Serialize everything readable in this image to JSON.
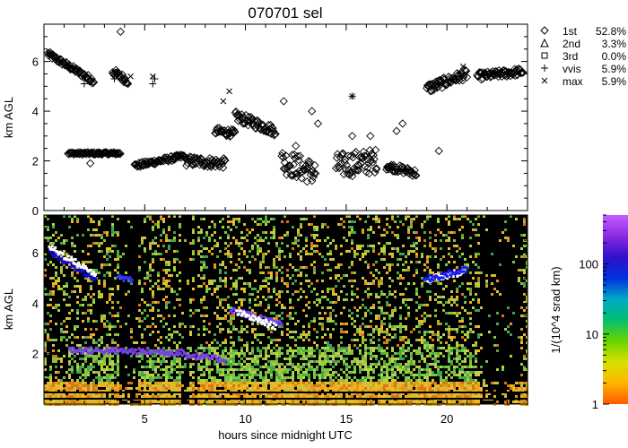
{
  "chart_data": [
    {
      "type": "scatter",
      "title": "070701 sel",
      "ylabel": "km AGL",
      "xlim": [
        0,
        24
      ],
      "ylim": [
        0,
        7.5
      ],
      "y_ticks": [
        "0",
        "2",
        "4",
        "6"
      ],
      "x_tick_values": [
        5,
        10,
        15,
        20
      ],
      "legend_position": "right",
      "legend": [
        {
          "symbol": "diamond",
          "glyph": "◇",
          "label": "1st",
          "percent": "52.8%"
        },
        {
          "symbol": "triangle",
          "glyph": "△",
          "label": "2nd",
          "percent": "3.3%"
        },
        {
          "symbol": "square",
          "glyph": "□",
          "label": "3rd",
          "percent": "0.0%"
        },
        {
          "symbol": "plus",
          "glyph": "+",
          "label": "vvis",
          "percent": "5.9%"
        },
        {
          "symbol": "x",
          "glyph": "×",
          "label": "max",
          "percent": "5.9%"
        }
      ],
      "series": [
        {
          "symbol": "diamond",
          "tracks": [
            {
              "x0": 0.2,
              "x1": 2.5,
              "y0": 6.3,
              "y1": 5.2,
              "noise": 0.12
            },
            {
              "x0": 1.2,
              "x1": 3.8,
              "y0": 2.3,
              "y1": 2.3,
              "noise": 0.05
            },
            {
              "x0": 3.4,
              "x1": 4.2,
              "y0": 5.6,
              "y1": 5.2,
              "noise": 0.15
            },
            {
              "x0": 4.5,
              "x1": 7.0,
              "y0": 1.8,
              "y1": 2.2,
              "noise": 0.1
            },
            {
              "x0": 7.0,
              "x1": 9.0,
              "y0": 2.0,
              "y1": 1.9,
              "noise": 0.2
            },
            {
              "x0": 8.5,
              "x1": 9.5,
              "y0": 3.2,
              "y1": 3.1,
              "noise": 0.15
            },
            {
              "x0": 9.5,
              "x1": 11.5,
              "y0": 3.8,
              "y1": 3.2,
              "noise": 0.2
            },
            {
              "x0": 11.8,
              "x1": 13.5,
              "y0": 2.0,
              "y1": 1.5,
              "noise": 0.5
            },
            {
              "x0": 14.5,
              "x1": 16.5,
              "y0": 1.8,
              "y1": 2.0,
              "noise": 0.5
            },
            {
              "x0": 17.0,
              "x1": 18.5,
              "y0": 1.8,
              "y1": 1.5,
              "noise": 0.15
            },
            {
              "x0": 19.0,
              "x1": 21.0,
              "y0": 4.9,
              "y1": 5.5,
              "noise": 0.2
            },
            {
              "x0": 21.5,
              "x1": 23.8,
              "y0": 5.4,
              "y1": 5.6,
              "noise": 0.15
            }
          ],
          "points": [
            {
              "x": 2.3,
              "y": 1.9
            },
            {
              "x": 3.8,
              "y": 7.2
            },
            {
              "x": 11.9,
              "y": 4.4
            },
            {
              "x": 12.5,
              "y": 2.6
            },
            {
              "x": 13.3,
              "y": 4.0
            },
            {
              "x": 13.6,
              "y": 3.5
            },
            {
              "x": 15.3,
              "y": 3.0
            },
            {
              "x": 16.2,
              "y": 3.0
            },
            {
              "x": 17.5,
              "y": 3.2
            },
            {
              "x": 17.8,
              "y": 3.5
            },
            {
              "x": 19.6,
              "y": 2.4
            },
            {
              "x": 16.5,
              "y": 1.7
            }
          ]
        },
        {
          "symbol": "plus",
          "points": [
            {
              "x": 3.5,
              "y": 5.3
            },
            {
              "x": 4.0,
              "y": 5.2
            },
            {
              "x": 5.4,
              "y": 5.1
            },
            {
              "x": 5.5,
              "y": 5.3
            },
            {
              "x": 2.0,
              "y": 5.1
            },
            {
              "x": 15.3,
              "y": 4.6
            }
          ]
        },
        {
          "symbol": "x",
          "points": [
            {
              "x": 3.6,
              "y": 5.5
            },
            {
              "x": 4.3,
              "y": 5.4
            },
            {
              "x": 5.4,
              "y": 5.4
            },
            {
              "x": 8.9,
              "y": 4.4
            },
            {
              "x": 9.2,
              "y": 4.8
            },
            {
              "x": 15.3,
              "y": 4.6
            },
            {
              "x": 20.8,
              "y": 5.8
            }
          ]
        }
      ]
    },
    {
      "type": "heatmap",
      "ylabel": "km AGL",
      "xlabel": "hours since midnight UTC",
      "xlim": [
        0,
        24
      ],
      "ylim": [
        0,
        7.5
      ],
      "x_ticks": [
        "5",
        "10",
        "15",
        "20"
      ],
      "y_ticks": [
        "2",
        "4",
        "6"
      ],
      "y_tick_values": [
        2,
        4,
        6
      ],
      "dark_columns_hours": [
        [
          3.7,
          4.6
        ],
        [
          6.8,
          7.1
        ],
        [
          7.4,
          7.6
        ],
        [
          21.6,
          23.6
        ]
      ],
      "layers": [
        {
          "x0": 0.2,
          "x1": 2.5,
          "y0": 6.1,
          "y1": 5.0,
          "color": "#0a0ae0"
        },
        {
          "x0": 0.2,
          "x1": 2.5,
          "y0": 6.3,
          "y1": 5.2,
          "color": "#ffffff"
        },
        {
          "x0": 1.2,
          "x1": 7.0,
          "y0": 2.2,
          "y1": 2.1,
          "color": "#7a3fe8"
        },
        {
          "x0": 3.6,
          "x1": 4.3,
          "y0": 5.1,
          "y1": 5.0,
          "color": "#3a30ff"
        },
        {
          "x0": 7.0,
          "x1": 9.0,
          "y0": 2.0,
          "y1": 1.8,
          "color": "#7a3fe8"
        },
        {
          "x0": 9.2,
          "x1": 11.8,
          "y0": 3.8,
          "y1": 3.2,
          "color": "#6c3cff"
        },
        {
          "x0": 9.5,
          "x1": 11.5,
          "y0": 3.7,
          "y1": 3.1,
          "color": "#ffffff"
        },
        {
          "x0": 19.0,
          "x1": 20.8,
          "y0": 5.0,
          "y1": 5.3,
          "color": "#ffffff"
        },
        {
          "x0": 18.8,
          "x1": 21.0,
          "y0": 5.0,
          "y1": 5.4,
          "color": "#1a1aff"
        }
      ]
    },
    {
      "type": "colorbar",
      "label": "1/(10^4 srad km)",
      "scale": "log",
      "range": [
        1,
        500
      ],
      "ticks": [
        "1",
        "10",
        "100"
      ],
      "tick_values": [
        1,
        10,
        100
      ],
      "colors": [
        "#ff5a00",
        "#ffb400",
        "#d8e000",
        "#6ad400",
        "#00c070",
        "#00a8c8",
        "#0030e0",
        "#3010c8",
        "#8a2be2",
        "#c45cff"
      ]
    }
  ]
}
